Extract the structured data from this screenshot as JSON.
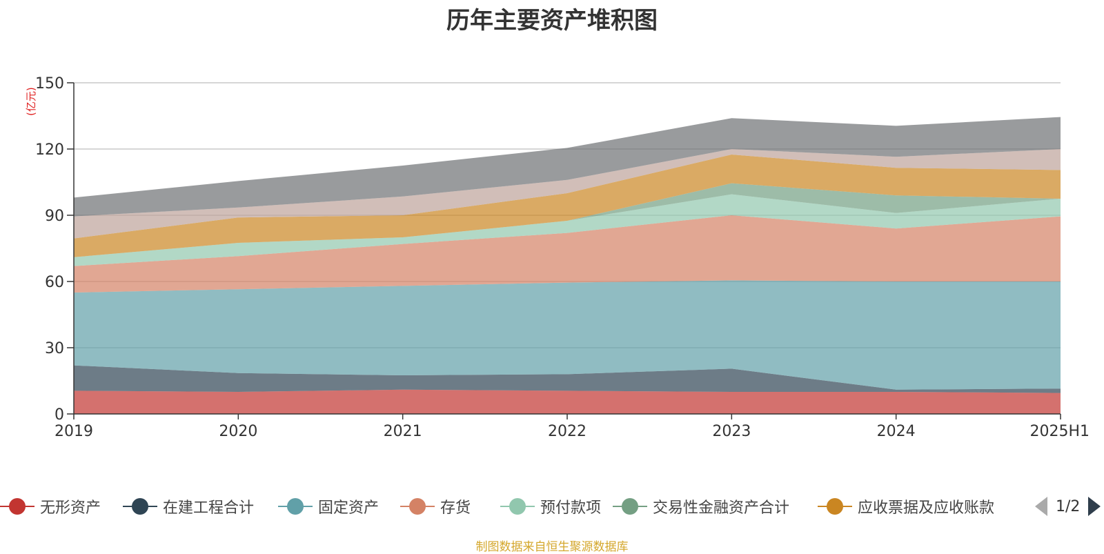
{
  "title": "历年主要资产堆积图",
  "unit": "(亿元)",
  "source": "制图数据来自恒生聚源数据库",
  "pager": {
    "text": "1/2"
  },
  "legend": [
    {
      "name": "无形资产",
      "color": "#c23531"
    },
    {
      "name": "在建工程合计",
      "color": "#2f4554"
    },
    {
      "name": "固定资产",
      "color": "#61a0a8"
    },
    {
      "name": "存货",
      "color": "#d48265"
    },
    {
      "name": "预付款项",
      "color": "#91c7ae"
    },
    {
      "name": "交易性金融资产合计",
      "color": "#749f83"
    },
    {
      "name": "应收票据及应收账款",
      "color": "#ca8622"
    }
  ],
  "chart_data": {
    "type": "area",
    "stacked": true,
    "categories": [
      "2019",
      "2020",
      "2021",
      "2022",
      "2023",
      "2024",
      "2025H1"
    ],
    "ylim": [
      0,
      150
    ],
    "yticks": [
      0,
      30,
      60,
      90,
      120,
      150
    ],
    "grid": true,
    "legend_position": "bottom",
    "series": [
      {
        "name": "无形资产",
        "color": "#c23531",
        "values": [
          10.5,
          10,
          11,
          10.5,
          10,
          10,
          9.5
        ]
      },
      {
        "name": "在建工程合计",
        "color": "#2f4554",
        "values": [
          11.5,
          8.5,
          6.5,
          7.5,
          10.5,
          1,
          2
        ]
      },
      {
        "name": "固定资产",
        "color": "#61a0a8",
        "values": [
          33,
          38,
          40.5,
          41.5,
          40,
          49,
          48.5
        ]
      },
      {
        "name": "存货",
        "color": "#d48265",
        "values": [
          12,
          15,
          19,
          22.5,
          29.5,
          24,
          29.5
        ]
      },
      {
        "name": "预付款项",
        "color": "#91c7ae",
        "values": [
          4,
          6,
          3,
          5.5,
          9.5,
          7,
          8
        ]
      },
      {
        "name": "交易性金融资产合计",
        "color": "#749f83",
        "values": [
          0,
          0,
          0,
          0,
          5,
          8,
          0
        ]
      },
      {
        "name": "应收票据及应收账款",
        "color": "#ca8622",
        "values": [
          8.5,
          11.5,
          10,
          12.5,
          13,
          12.5,
          13
        ]
      },
      {
        "color": "#bda29a",
        "values": [
          10,
          4.5,
          8.5,
          6,
          2.5,
          5,
          9.5
        ]
      },
      {
        "color": "#6e7074",
        "values": [
          8.5,
          12,
          14,
          14.5,
          14,
          14,
          14.5
        ]
      }
    ]
  }
}
